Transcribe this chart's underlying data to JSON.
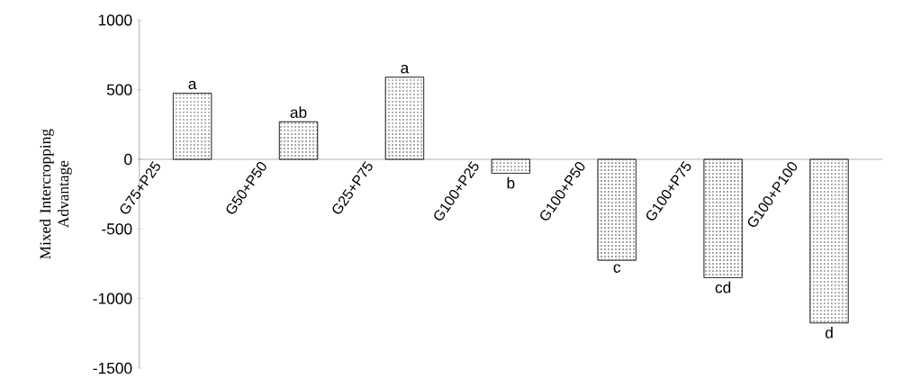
{
  "chart_data": {
    "type": "bar",
    "ylabel": "Mixed Intercropping Advantage",
    "categories": [
      "G75+P25",
      "G50+P50",
      "G25+P75",
      "G100+P25",
      "G100+P50",
      "G100+P75",
      "G100+P100"
    ],
    "values": [
      475,
      270,
      590,
      -100,
      -725,
      -850,
      -1175
    ],
    "color": "#000000",
    "ylim": [
      -1500,
      1000
    ],
    "yticks": [
      -1500,
      -1000,
      -500,
      0,
      500,
      1000
    ],
    "annotations": [
      "a",
      "ab",
      "a",
      "b",
      "c",
      "cd",
      "d"
    ]
  }
}
